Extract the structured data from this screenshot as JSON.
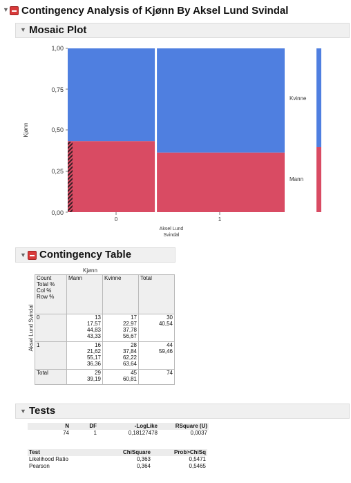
{
  "report": {
    "title": "Contingency Analysis of Kjønn By Aksel Lund Svindal"
  },
  "mosaic": {
    "title": "Mosaic Plot",
    "ylabel": "Kjønn",
    "xlabel": "Aksel Lund Svindal",
    "yticks": [
      "1,00",
      "0,75",
      "0,50",
      "0,25",
      "0,00"
    ],
    "xticks": [
      "0",
      "1"
    ],
    "legend": [
      "Kvinne",
      "Mann"
    ],
    "colors": {
      "kvinne": "#4f7fe0",
      "mann": "#d94b63"
    }
  },
  "chart_data": {
    "type": "mosaic",
    "xlabel": "Aksel Lund Svindal",
    "ylabel": "Kjønn",
    "ylim": [
      0,
      1
    ],
    "categories": [
      "0",
      "1"
    ],
    "column_widths": [
      0.4054,
      0.5946
    ],
    "series": [
      {
        "name": "Mann",
        "values": [
          0.4333,
          0.3636
        ]
      },
      {
        "name": "Kvinne",
        "values": [
          0.5667,
          0.6364
        ]
      }
    ],
    "marginal": {
      "Mann": 0.3919,
      "Kvinne": 0.6081
    }
  },
  "contingency": {
    "title": "Contingency Table",
    "top_label": "Kjønn",
    "side_label": "Aksel Lund Svindal",
    "legend_lines": [
      "Count",
      "Total %",
      "Col %",
      "Row %"
    ],
    "col_headers": [
      "Mann",
      "Kvinne",
      "Total"
    ],
    "row0": {
      "label": "0",
      "mann": [
        "13",
        "17,57",
        "44,83",
        "43,33"
      ],
      "kvinne": [
        "17",
        "22,97",
        "37,78",
        "56,67"
      ],
      "total": [
        "30",
        "40,54"
      ]
    },
    "row1": {
      "label": "1",
      "mann": [
        "16",
        "21,62",
        "55,17",
        "36,36"
      ],
      "kvinne": [
        "28",
        "37,84",
        "62,22",
        "63,64"
      ],
      "total": [
        "44",
        "59,46"
      ]
    },
    "totalrow": {
      "label": "Total",
      "mann": [
        "29",
        "39,19"
      ],
      "kvinne": [
        "45",
        "60,81"
      ],
      "total": [
        "74"
      ]
    }
  },
  "tests": {
    "title": "Tests",
    "summary_headers": [
      "N",
      "DF",
      "-LogLike",
      "RSquare (U)"
    ],
    "summary_values": [
      "74",
      "1",
      "0,18127478",
      "0,0037"
    ],
    "headers": [
      "Test",
      "ChiSquare",
      "Prob>ChiSq"
    ],
    "rows": [
      {
        "test": "Likelihood Ratio",
        "chisq": "0,363",
        "prob": "0,5471"
      },
      {
        "test": "Pearson",
        "chisq": "0,364",
        "prob": "0,5465"
      }
    ]
  }
}
